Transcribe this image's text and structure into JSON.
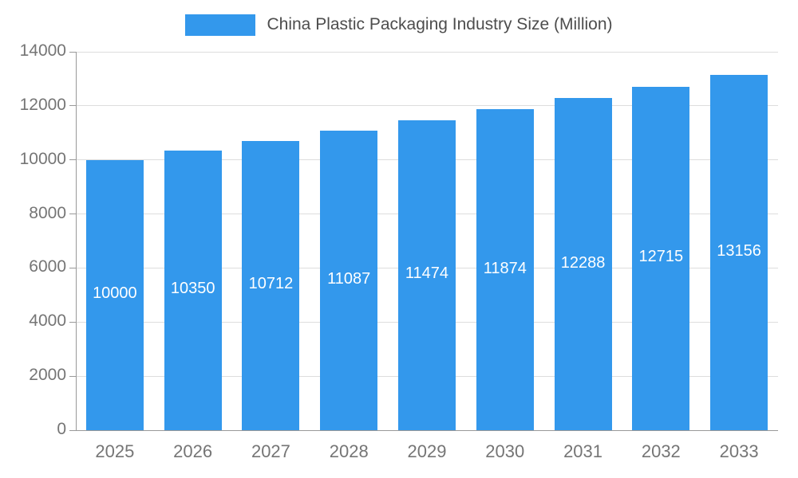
{
  "chart_data": {
    "type": "bar",
    "title": "China Plastic Packaging Industry Size (Million)",
    "categories": [
      "2025",
      "2026",
      "2027",
      "2028",
      "2029",
      "2030",
      "2031",
      "2032",
      "2033"
    ],
    "values": [
      10000,
      10350,
      10712,
      11087,
      11474,
      11874,
      12288,
      12715,
      13156
    ],
    "xlabel": "",
    "ylabel": "",
    "ylim": [
      0,
      14000
    ],
    "yticks": [
      0,
      2000,
      4000,
      6000,
      8000,
      10000,
      12000,
      14000
    ],
    "grid": true,
    "legend_position": "top",
    "bar_color": "#3398EC",
    "value_label_color": "#FFFFFF",
    "tick_label_color": "#757575",
    "gridline_color": "#DDDDDD",
    "axis_color": "#999999"
  }
}
